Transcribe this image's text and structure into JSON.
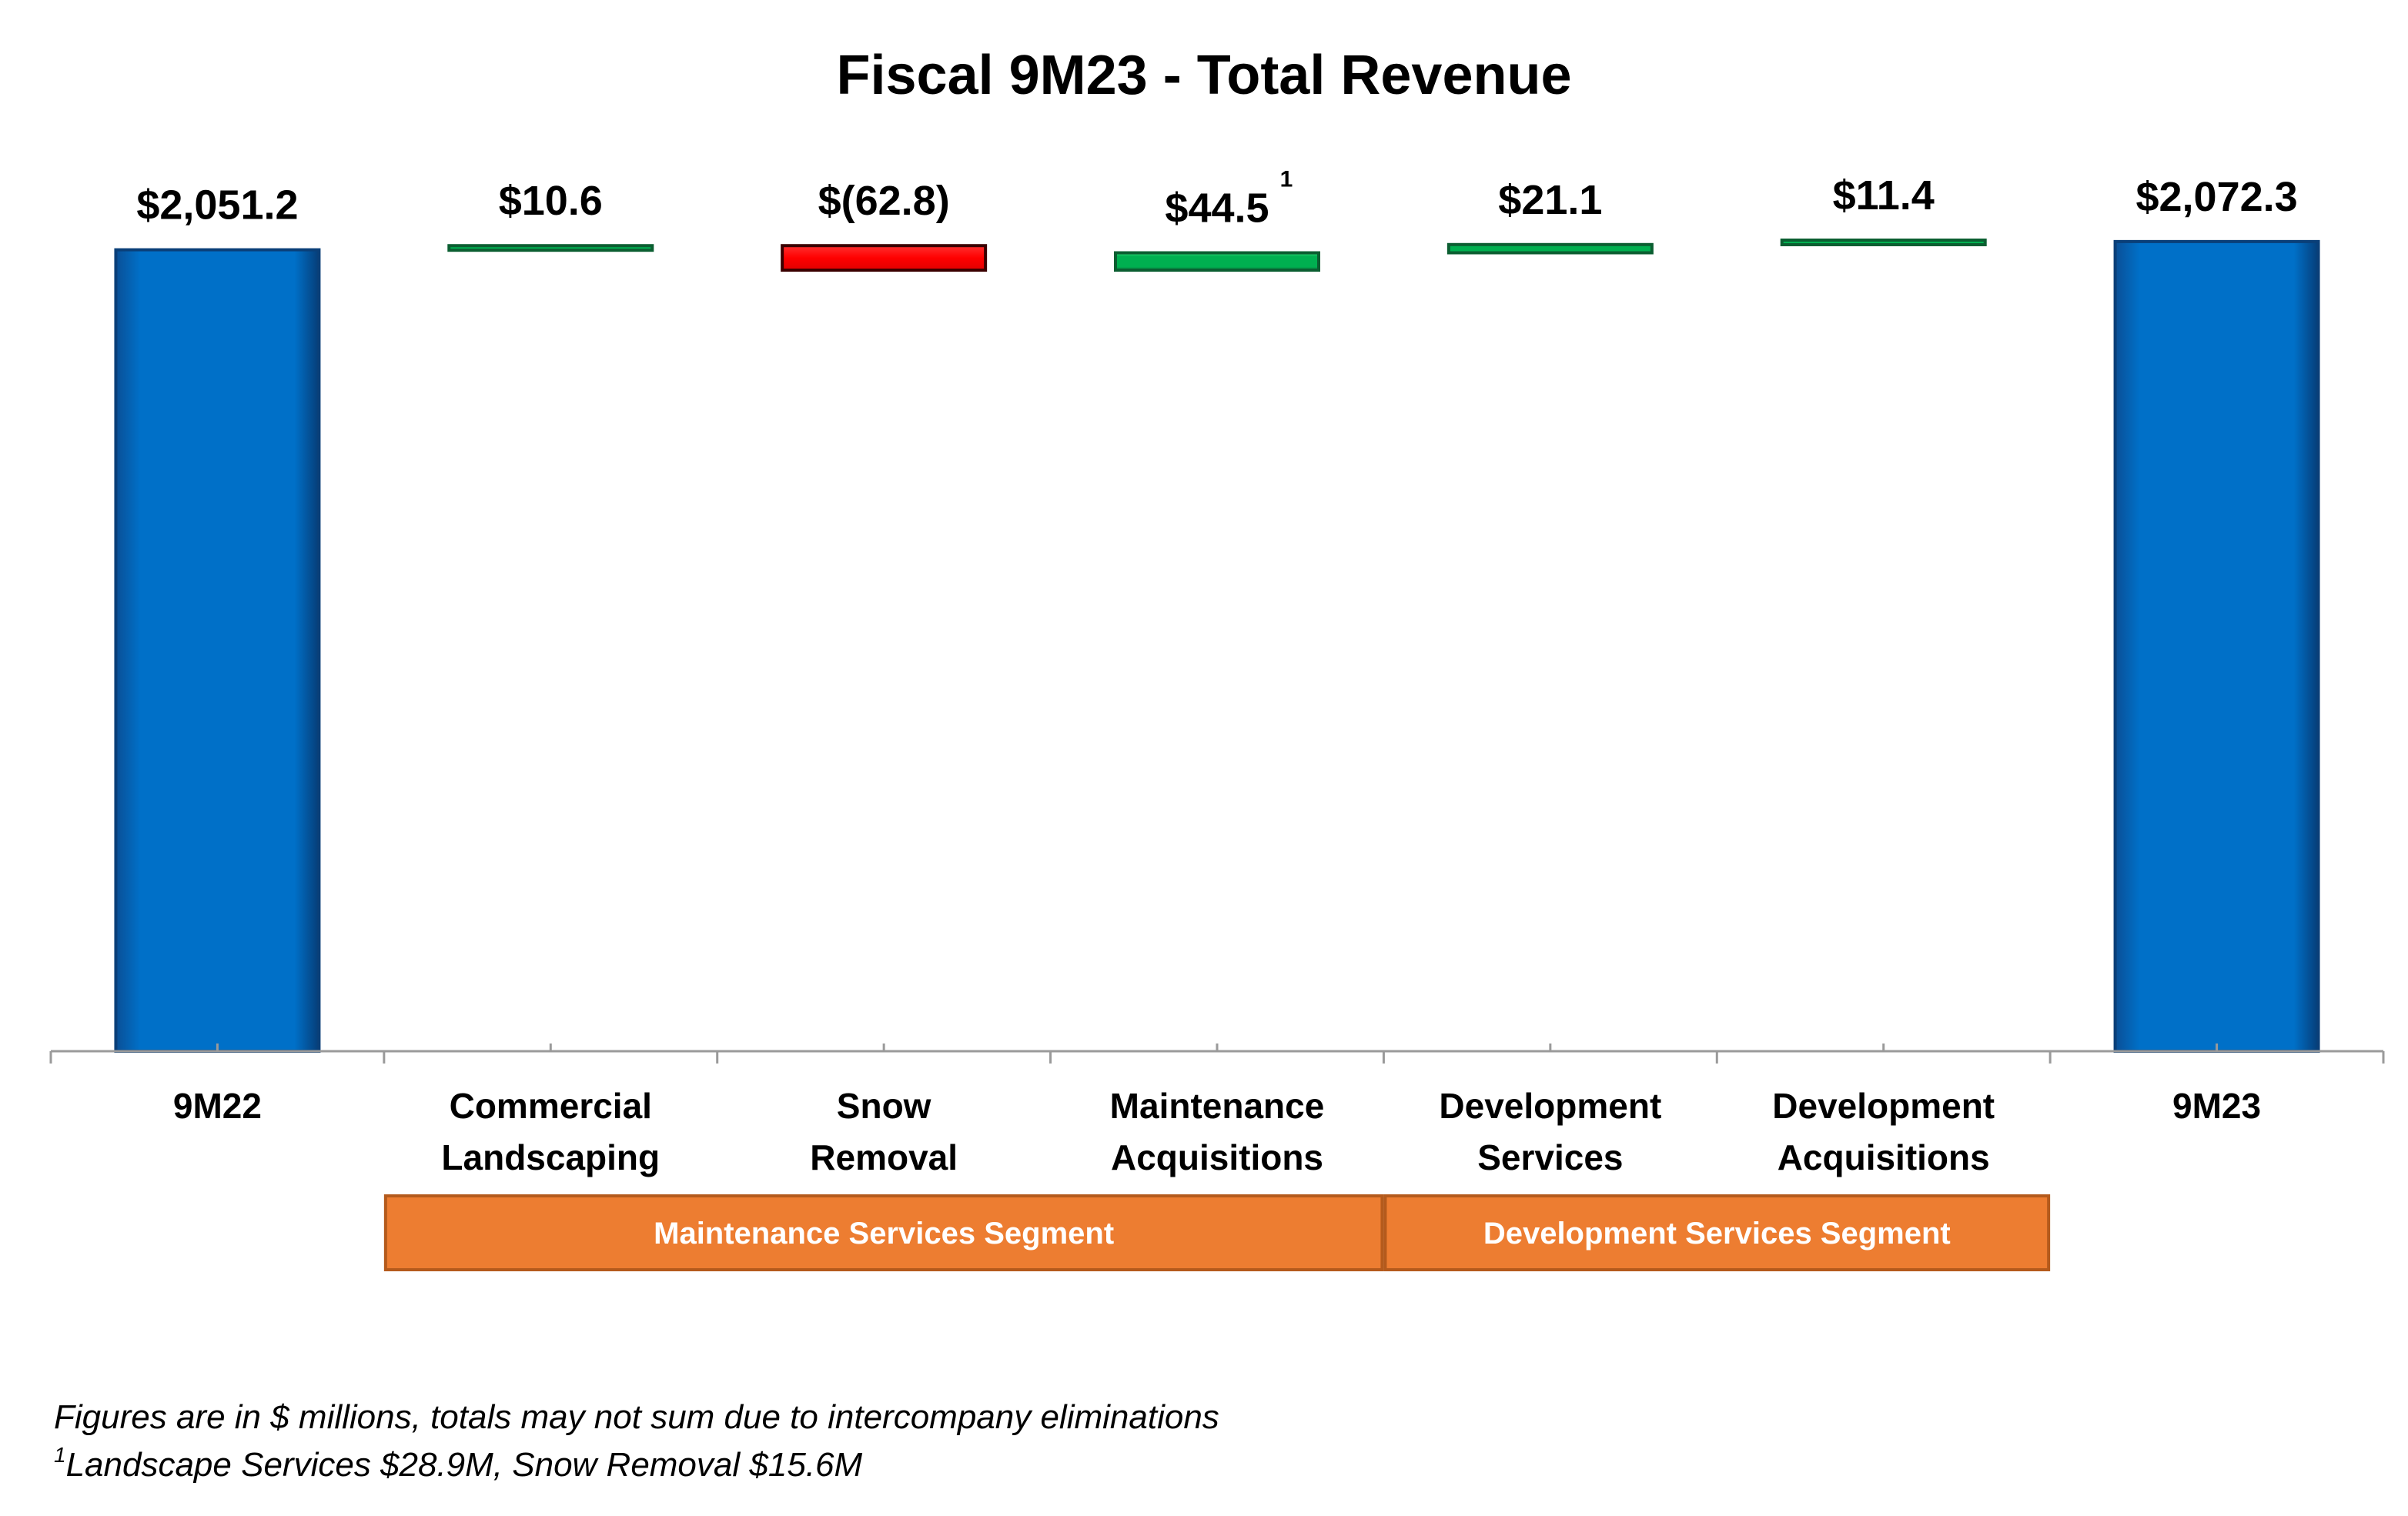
{
  "chart_data": {
    "type": "bar",
    "title": "Fiscal 9M23 - Total Revenue",
    "categories": [
      [
        "9M22"
      ],
      [
        "Commercial",
        "Landscaping"
      ],
      [
        "Snow",
        "Removal"
      ],
      [
        "Maintenance",
        "Acquisitions"
      ],
      [
        "Development",
        "Services"
      ],
      [
        "Development",
        "Acquisitions"
      ],
      [
        "9M23"
      ]
    ],
    "values": [
      2051.2,
      10.6,
      -62.8,
      44.5,
      21.1,
      11.4,
      2072.3
    ],
    "value_labels": [
      "$2,051.2",
      "$10.6",
      "$(62.8)",
      "$44.5",
      "$21.1",
      "$11.4",
      "$2,072.3"
    ],
    "label_superscripts": [
      "",
      "",
      "",
      "1",
      "",
      "",
      ""
    ],
    "kinds": [
      "total",
      "increase",
      "decrease",
      "increase",
      "increase",
      "increase",
      "total"
    ],
    "colors": {
      "total": "#0070C8",
      "increase": "#00B050",
      "decrease": "#FF0000",
      "segment": "#ED7D31"
    },
    "segments": [
      {
        "label": "Maintenance Services Segment",
        "from": 1,
        "to": 3
      },
      {
        "label": "Development Services Segment",
        "from": 4,
        "to": 5
      }
    ],
    "footnotes": [
      {
        "sup": "",
        "text": "Figures are in $ millions, totals may not sum due to intercompany eliminations"
      },
      {
        "sup": "1",
        "text": "Landscape Services $28.9M, Snow Removal $15.6M"
      }
    ]
  }
}
